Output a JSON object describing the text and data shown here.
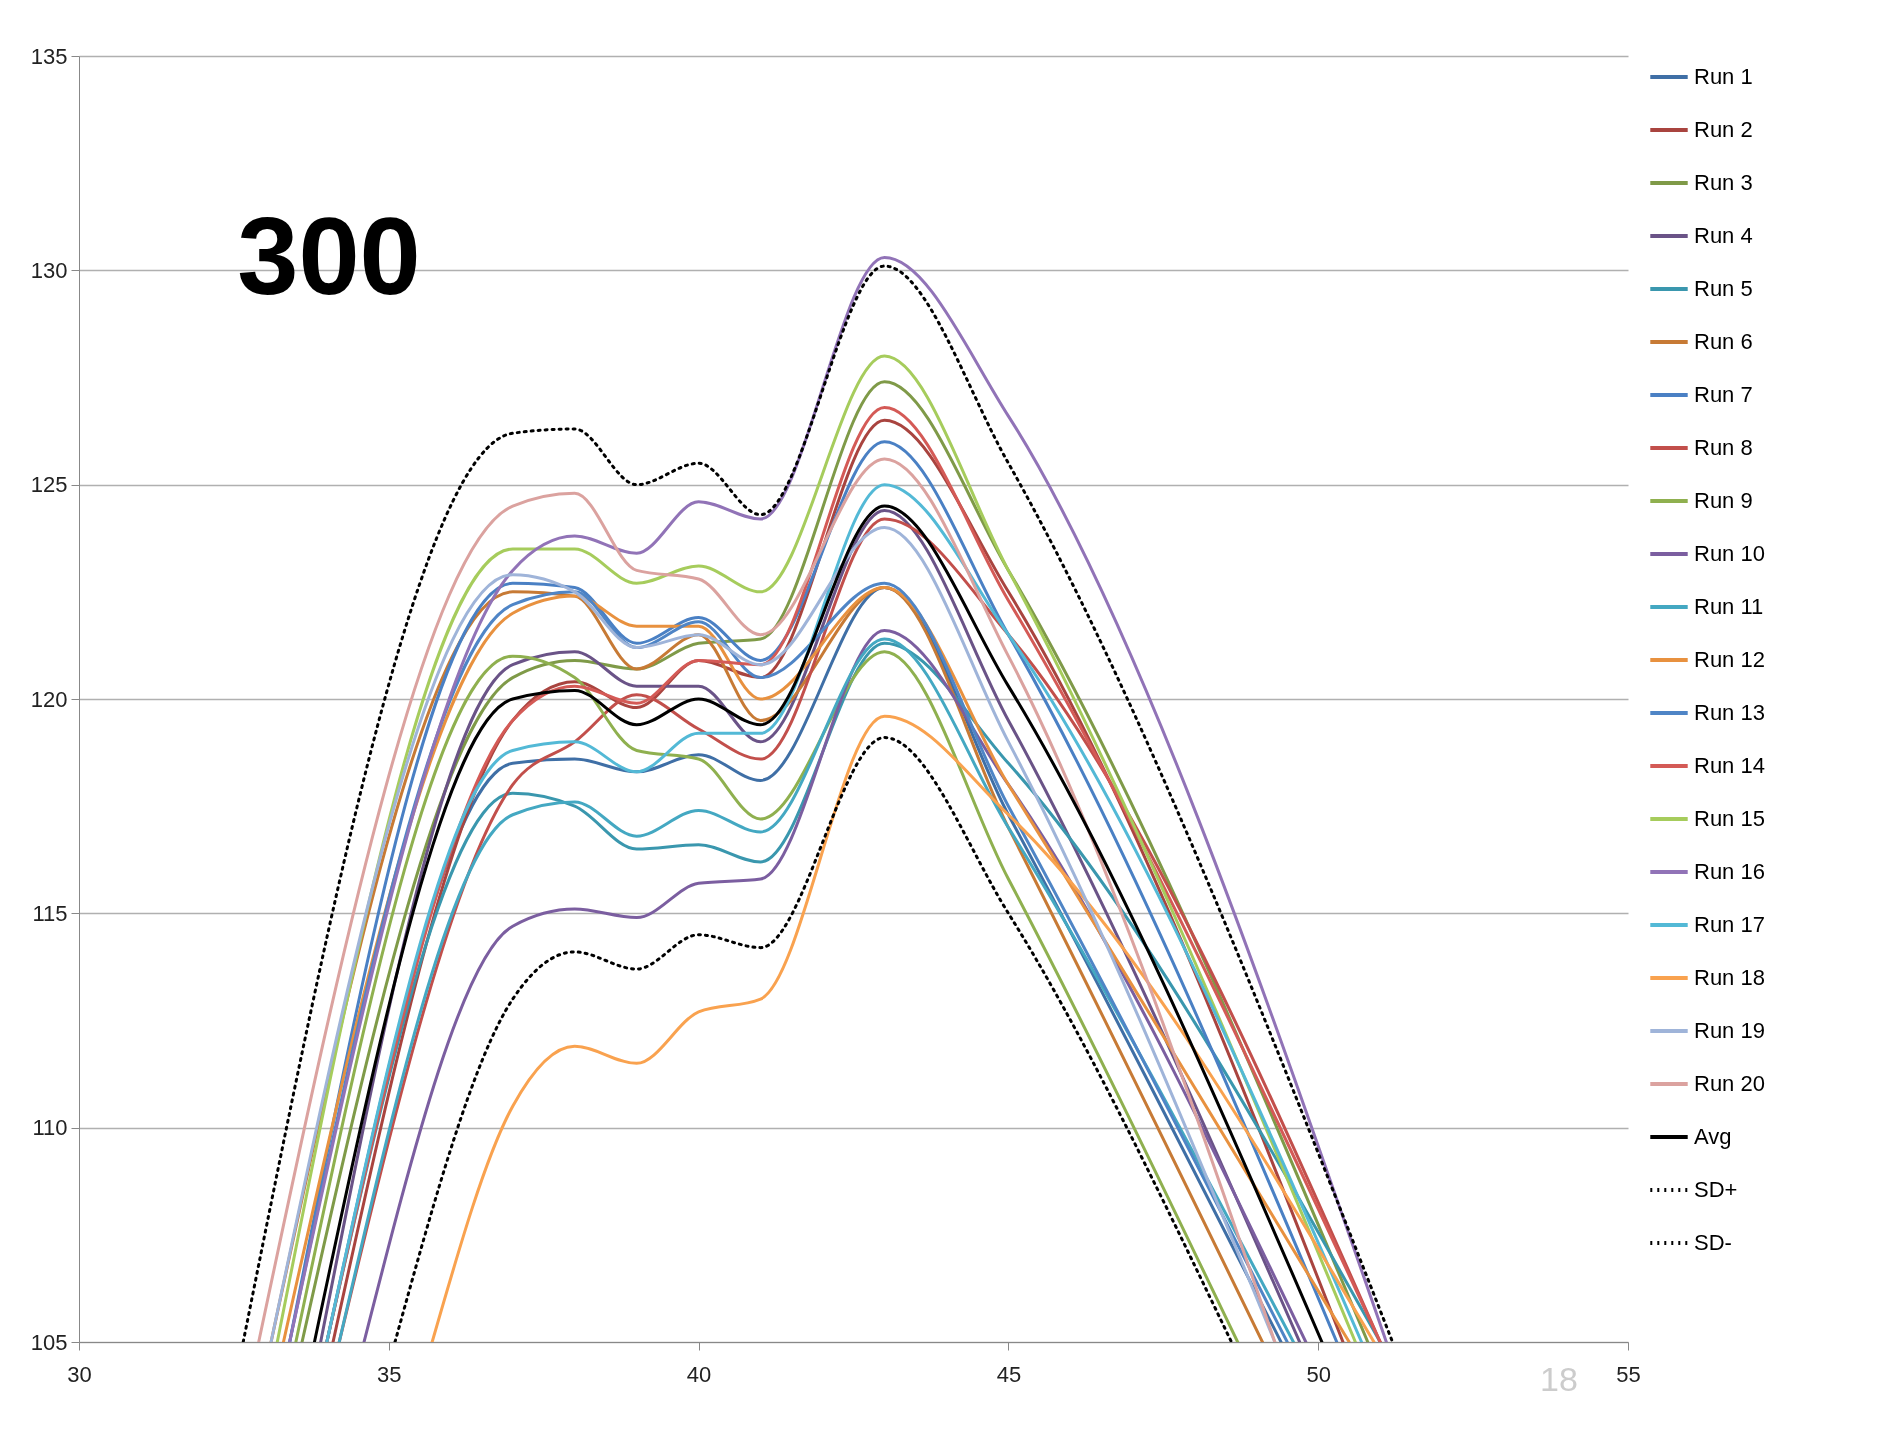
{
  "chart_data": {
    "type": "line",
    "annotations": [
      "300",
      "18"
    ],
    "xlim": [
      30,
      55
    ],
    "xticks": [
      30,
      35,
      40,
      45,
      50,
      55
    ],
    "ylim": [
      105,
      135
    ],
    "yticks": [
      105,
      110,
      115,
      120,
      125,
      130,
      135
    ],
    "grid": "y",
    "legend": "right",
    "marker": "none",
    "series": [
      {
        "name": "Run 1",
        "color": "#3f6fa6",
        "x": [
          34.0,
          37,
          38,
          39,
          40,
          41,
          43,
          45,
          49.4
        ],
        "values": [
          105,
          118.5,
          118.6,
          118.3,
          118.7,
          118.1,
          122.6,
          117.3,
          105
        ]
      },
      {
        "name": "Run 2",
        "color": "#a9443f",
        "x": [
          34.1,
          37,
          38,
          39,
          40,
          41,
          43,
          45,
          50.4
        ],
        "values": [
          105,
          119.5,
          120.4,
          119.8,
          120.9,
          120.5,
          126.5,
          122.5,
          105
        ]
      },
      {
        "name": "Run 3",
        "color": "#7f9a48",
        "x": [
          33.6,
          37,
          38,
          39,
          40,
          41,
          43,
          45,
          50.8
        ],
        "values": [
          105,
          120.5,
          120.9,
          120.7,
          121.3,
          121.4,
          127.4,
          123.0,
          105
        ]
      },
      {
        "name": "Run 4",
        "color": "#6a5387",
        "x": [
          33.9,
          37,
          38,
          39,
          40,
          41,
          43,
          45,
          49.7
        ],
        "values": [
          105,
          120.8,
          121.1,
          120.3,
          120.3,
          119.0,
          124.4,
          119.5,
          105
        ]
      },
      {
        "name": "Run 5",
        "color": "#3a97ae",
        "x": [
          34.0,
          37,
          38,
          39,
          40,
          41,
          43,
          45,
          51.0
        ],
        "values": [
          105,
          117.8,
          117.5,
          116.5,
          116.6,
          116.2,
          121.3,
          118.5,
          105
        ]
      },
      {
        "name": "Run 6",
        "color": "#c77a35",
        "x": [
          33.1,
          37,
          38,
          39,
          40,
          41,
          43,
          45,
          49.1
        ],
        "values": [
          105,
          122.5,
          122.4,
          120.7,
          121.5,
          119.5,
          122.6,
          117.0,
          105
        ]
      },
      {
        "name": "Run 7",
        "color": "#4a80c4",
        "x": [
          33.4,
          37,
          38,
          39,
          40,
          41,
          43,
          45,
          50.3
        ],
        "values": [
          105,
          122.7,
          122.6,
          121.3,
          121.9,
          120.9,
          126.0,
          121.5,
          105
        ]
      },
      {
        "name": "Run 8",
        "color": "#c24f4b",
        "x": [
          34.2,
          37,
          38,
          39,
          40,
          41,
          43,
          45,
          51.0
        ],
        "values": [
          105,
          118.0,
          119.0,
          120.1,
          119.3,
          118.6,
          124.2,
          121.5,
          105
        ]
      },
      {
        "name": "Run 9",
        "color": "#8fb04f",
        "x": [
          33.5,
          37,
          38,
          39,
          40,
          41,
          43,
          45,
          48.7
        ],
        "values": [
          105,
          121.0,
          120.5,
          118.8,
          118.6,
          117.2,
          121.1,
          115.8,
          105
        ]
      },
      {
        "name": "Run 10",
        "color": "#7b5ea0",
        "x": [
          34.6,
          37,
          38,
          39,
          40,
          41,
          43,
          45,
          49.8
        ],
        "values": [
          105,
          114.7,
          115.1,
          114.9,
          115.7,
          115.8,
          121.6,
          118.0,
          105
        ]
      },
      {
        "name": "Run 11",
        "color": "#44a8c2",
        "x": [
          34.2,
          37,
          38,
          39,
          40,
          41,
          43,
          45,
          49.6
        ],
        "values": [
          105,
          117.3,
          117.6,
          116.8,
          117.4,
          116.9,
          121.4,
          117.0,
          105
        ]
      },
      {
        "name": "Run 12",
        "color": "#e8913f",
        "x": [
          33.3,
          37,
          38,
          39,
          40,
          41,
          43,
          45,
          50.5
        ],
        "values": [
          105,
          122.0,
          122.4,
          121.7,
          121.7,
          120.0,
          122.6,
          118.0,
          105
        ]
      },
      {
        "name": "Run 13",
        "color": "#4f85c6",
        "x": [
          33.4,
          37,
          38,
          39,
          40,
          41,
          43,
          45,
          49.5
        ],
        "values": [
          105,
          122.2,
          122.5,
          121.2,
          121.8,
          120.5,
          122.7,
          117.5,
          105
        ]
      },
      {
        "name": "Run 14",
        "color": "#d45a56",
        "x": [
          34.0,
          37,
          38,
          39,
          40,
          41,
          43,
          45,
          51.0
        ],
        "values": [
          105,
          119.5,
          120.3,
          119.9,
          120.9,
          120.8,
          126.8,
          122.3,
          105
        ]
      },
      {
        "name": "Run 15",
        "color": "#a6cc5c",
        "x": [
          33.2,
          37,
          38,
          39,
          40,
          41,
          43,
          45,
          50.6
        ],
        "values": [
          105,
          123.5,
          123.5,
          122.7,
          123.1,
          122.5,
          128.0,
          123.0,
          105
        ]
      },
      {
        "name": "Run 16",
        "color": "#9173b7",
        "x": [
          33.4,
          37,
          38,
          39,
          40,
          41,
          43,
          45,
          51.1
        ],
        "values": [
          105,
          123.0,
          123.8,
          123.4,
          124.6,
          124.2,
          130.3,
          126.6,
          105
        ]
      },
      {
        "name": "Run 17",
        "color": "#53b9d6",
        "x": [
          34.0,
          37,
          38,
          39,
          40,
          41,
          43,
          45,
          50.7
        ],
        "values": [
          105,
          118.8,
          119.0,
          118.3,
          119.2,
          119.2,
          125.0,
          121.5,
          105
        ]
      },
      {
        "name": "Run 18",
        "color": "#f9a24f",
        "x": [
          35.7,
          37,
          38,
          39,
          40,
          41,
          43,
          45,
          50.9
        ],
        "values": [
          105,
          110.5,
          111.9,
          111.5,
          112.7,
          113.0,
          119.6,
          117.3,
          105
        ]
      },
      {
        "name": "Run 19",
        "color": "#9fb4d9",
        "x": [
          33.1,
          37,
          38,
          39,
          40,
          41,
          43,
          45,
          49.3
        ],
        "values": [
          105,
          122.9,
          122.5,
          121.2,
          121.5,
          120.8,
          124.0,
          119.0,
          105
        ]
      },
      {
        "name": "Run 20",
        "color": "#dba29f",
        "x": [
          32.9,
          37,
          38,
          39,
          40,
          41,
          43,
          45,
          49.3
        ],
        "values": [
          105,
          124.5,
          124.8,
          123.0,
          122.8,
          121.5,
          125.6,
          121.0,
          105
        ]
      },
      {
        "name": "Avg",
        "color": "#000000",
        "x": [
          33.8,
          37,
          38,
          39,
          40,
          41,
          43,
          45,
          50.06
        ],
        "values": [
          105,
          120.0,
          120.2,
          119.4,
          120.0,
          119.4,
          124.5,
          120.3,
          105
        ]
      },
      {
        "name": "SD+",
        "color": "#000000",
        "line_style": "dotted",
        "x": [
          32.65,
          37,
          38,
          39,
          40,
          41,
          43,
          45,
          51.2
        ],
        "values": [
          105,
          126.2,
          126.3,
          125.0,
          125.5,
          124.3,
          130.1,
          125.5,
          105
        ]
      },
      {
        "name": "SD-",
        "color": "#000000",
        "line_style": "dotted",
        "x": [
          35.1,
          37,
          38,
          39,
          40,
          41,
          43,
          45,
          48.6
        ],
        "values": [
          105,
          113.0,
          114.1,
          113.7,
          114.5,
          114.2,
          119.1,
          115.0,
          105
        ]
      }
    ]
  }
}
